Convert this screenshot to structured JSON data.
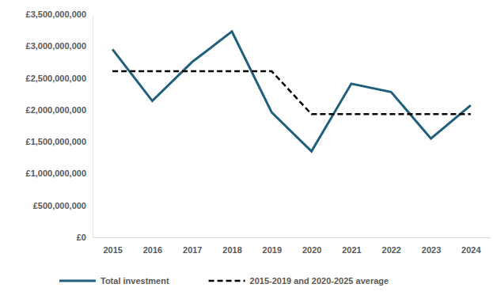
{
  "chart_data": {
    "type": "line",
    "categories": [
      "2015",
      "2016",
      "2017",
      "2018",
      "2019",
      "2020",
      "2021",
      "2022",
      "2023",
      "2024"
    ],
    "series": [
      {
        "name": "Total investment",
        "color": "#1f5f7d",
        "line_style": "solid",
        "values": [
          2950000000,
          2140000000,
          2750000000,
          3230000000,
          1960000000,
          1350000000,
          2410000000,
          2280000000,
          1550000000,
          2070000000
        ]
      },
      {
        "name": "2015-2019 and 2020-2025 average",
        "color": "#000000",
        "line_style": "dashed",
        "values": [
          2606000000,
          2606000000,
          2606000000,
          2606000000,
          2606000000,
          1932000000,
          1932000000,
          1932000000,
          1932000000,
          1932000000
        ]
      }
    ],
    "ylim": [
      0,
      3500000000
    ],
    "yticks": [
      {
        "value": 0,
        "label": "£0"
      },
      {
        "value": 500000000,
        "label": "£500,000,000"
      },
      {
        "value": 1000000000,
        "label": "£1,000,000,000"
      },
      {
        "value": 1500000000,
        "label": "£1,500,000,000"
      },
      {
        "value": 2000000000,
        "label": "£2,000,000,000"
      },
      {
        "value": 2500000000,
        "label": "£2,500,000,000"
      },
      {
        "value": 3000000000,
        "label": "£3,000,000,000"
      },
      {
        "value": 3500000000,
        "label": "£3,500,000,000"
      }
    ],
    "grid": false,
    "legend": "bottom"
  }
}
